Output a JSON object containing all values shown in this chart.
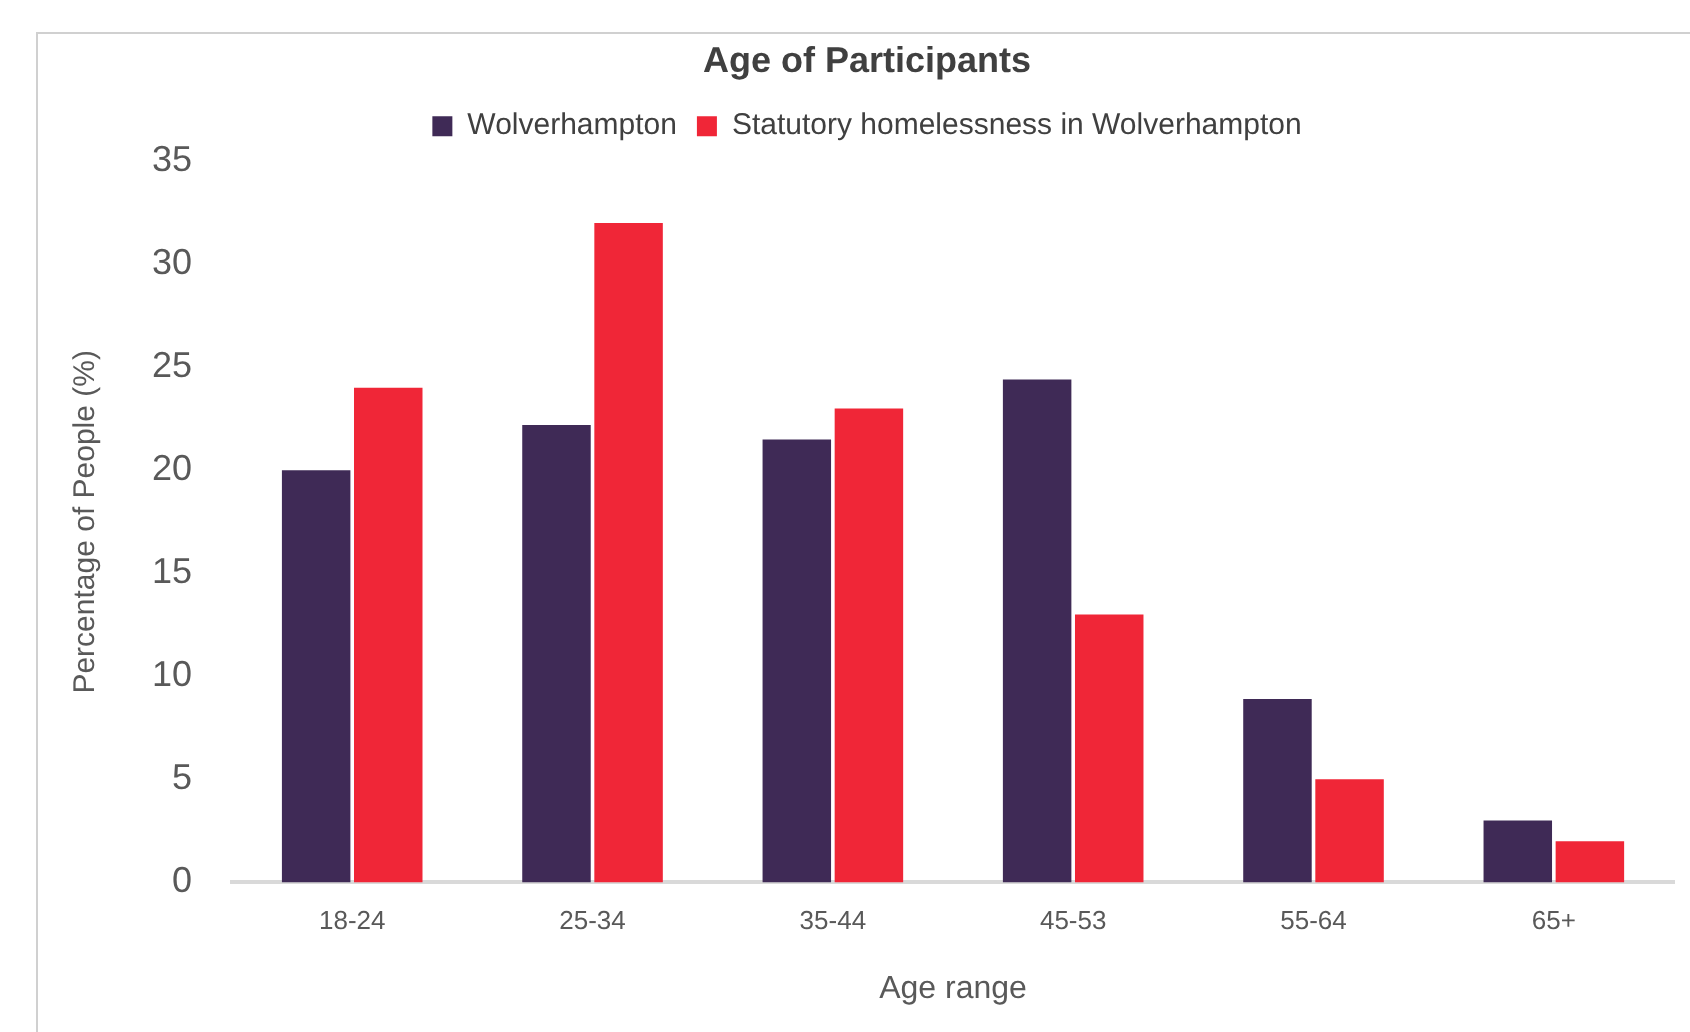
{
  "chart_data": {
    "type": "bar",
    "title": "Age of Participants",
    "xlabel": "Age range",
    "ylabel": "Percentage of People (%)",
    "categories": [
      "18-24",
      "25-34",
      "35-44",
      "45-53",
      "55-64",
      "65+"
    ],
    "series": [
      {
        "name": "Wolverhampton",
        "color": "#3f2a56",
        "values": [
          20,
          22.2,
          21.5,
          24.4,
          8.9,
          3
        ]
      },
      {
        "name": "Statutory homelessness in Wolverhampton",
        "color": "#f02637",
        "values": [
          24,
          32,
          23,
          13,
          5,
          2
        ]
      }
    ],
    "ylim": [
      0,
      35
    ],
    "yticks": [
      0,
      5,
      10,
      15,
      20,
      25,
      30,
      35
    ],
    "grid": false,
    "legend": "top"
  }
}
